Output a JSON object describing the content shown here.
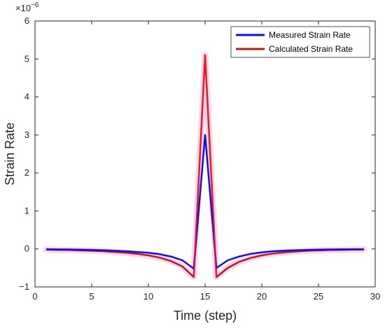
{
  "chart_data": {
    "type": "line",
    "title": "",
    "xlabel": "Time (step)",
    "ylabel": "Strain Rate",
    "y_exponent_label": "×10",
    "y_exponent_power": "−6",
    "xlim": [
      0,
      30
    ],
    "ylim": [
      -1,
      6
    ],
    "x_ticks": [
      0,
      5,
      10,
      15,
      20,
      25,
      30
    ],
    "y_ticks": [
      -1,
      0,
      1,
      2,
      3,
      4,
      5,
      6
    ],
    "grid": false,
    "legend_position": "top-right",
    "x": [
      1,
      2,
      3,
      4,
      5,
      6,
      7,
      8,
      9,
      10,
      11,
      12,
      13,
      14,
      15,
      16,
      17,
      18,
      19,
      20,
      21,
      22,
      23,
      24,
      25,
      26,
      27,
      28,
      29
    ],
    "series": [
      {
        "name": "Measured Strain Rate",
        "color": "#1010e0",
        "values": [
          -0.01,
          -0.012,
          -0.015,
          -0.02,
          -0.025,
          -0.035,
          -0.045,
          -0.06,
          -0.08,
          -0.1,
          -0.14,
          -0.2,
          -0.3,
          -0.52,
          3.0,
          -0.5,
          -0.3,
          -0.2,
          -0.13,
          -0.09,
          -0.06,
          -0.045,
          -0.035,
          -0.025,
          -0.02,
          -0.015,
          -0.012,
          -0.01,
          -0.008
        ]
      },
      {
        "name": "Calculated Strain Rate",
        "color": "#b0201c",
        "highlight_color": "#ff9ee0",
        "values": [
          -0.02,
          -0.025,
          -0.03,
          -0.04,
          -0.05,
          -0.06,
          -0.08,
          -0.1,
          -0.13,
          -0.17,
          -0.23,
          -0.32,
          -0.46,
          -0.74,
          5.1,
          -0.74,
          -0.5,
          -0.34,
          -0.24,
          -0.17,
          -0.12,
          -0.09,
          -0.07,
          -0.05,
          -0.04,
          -0.03,
          -0.025,
          -0.02,
          -0.015
        ]
      }
    ]
  }
}
